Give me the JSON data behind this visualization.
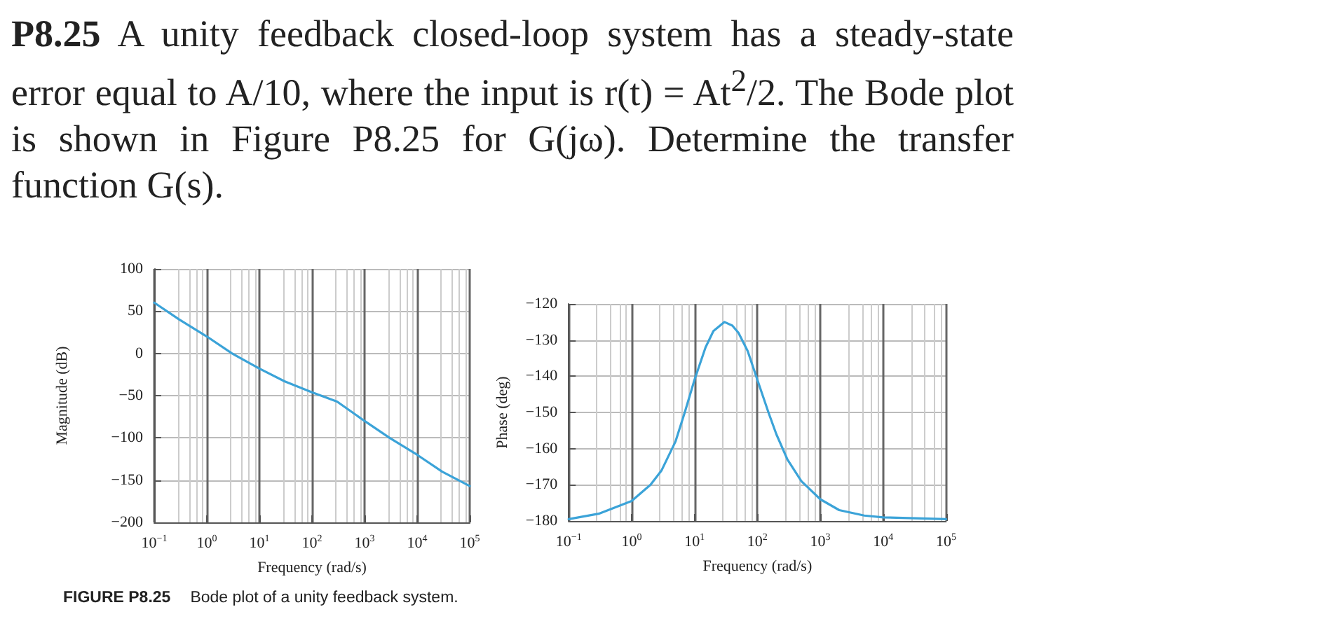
{
  "chart_data": [
    {
      "type": "line",
      "xlabel": "Frequency (rad/s)",
      "ylabel": "Magnitude (dB)",
      "annotations": [
        "P8.25",
        "A unity feedback closed-loop system has a steady-state error equal to A/10, where the input is r(t) = At$^{2}$/2. The Bode plot is shown in Figure P8.25 for G(jω). Determine the transfer function G(s).",
        "FIGURE P8.25",
        "Bode plot of a unity feedback system."
      ],
      "x": [
        0.1,
        0.3,
        1,
        3,
        10,
        30,
        100,
        300,
        1000,
        3000,
        10000,
        30000,
        100000
      ],
      "series": [
        {
          "color": "#3ba3d8",
          "values": [
            60,
            40,
            20,
            0,
            -18,
            -33,
            -46,
            -57,
            -80,
            -100,
            -120,
            -140,
            -157
          ]
        }
      ],
      "xlim": [
        0.1,
        100000
      ],
      "xticks": [
        {
          "value": 0.1,
          "label": "10$^{−1}$"
        },
        {
          "value": 1,
          "label": "10$^{0}$"
        },
        {
          "value": 10,
          "label": "10$^{1}$"
        },
        {
          "value": 100,
          "label": "10$^{2}$"
        },
        {
          "value": 1000,
          "label": "10$^{3}$"
        },
        {
          "value": 10000,
          "label": "10$^{4}$"
        },
        {
          "value": 100000,
          "label": "10$^{5}$"
        }
      ],
      "ylim": [
        -200,
        100
      ],
      "yticks": [
        {
          "value": -200,
          "label": "−200"
        },
        {
          "value": -150,
          "label": "−150"
        },
        {
          "value": -100,
          "label": "−100"
        },
        {
          "value": -50,
          "label": "−50"
        },
        0,
        50,
        100
      ],
      "log": "x",
      "grid": true,
      "marker": "none",
      "line_style": "solid"
    },
    {
      "type": "line",
      "xlabel": "Frequency (rad/s)",
      "ylabel": "Phase (deg)",
      "x": [
        0.1,
        0.3,
        1,
        2,
        3,
        5,
        7,
        10,
        15,
        20,
        30,
        40,
        50,
        70,
        100,
        150,
        200,
        300,
        500,
        1000,
        2000,
        5000,
        10000,
        100000
      ],
      "series": [
        {
          "color": "#3ba3d8",
          "values": [
            -179.5,
            -178,
            -174.5,
            -170,
            -166,
            -158,
            -150,
            -141,
            -132,
            -127.5,
            -125,
            -126,
            -128,
            -133,
            -141,
            -150,
            -156,
            -163,
            -169,
            -174,
            -177,
            -178.5,
            -179,
            -179.5
          ]
        }
      ],
      "xlim": [
        0.1,
        100000
      ],
      "xticks": [
        {
          "value": 0.1,
          "label": "10$^{−1}$"
        },
        {
          "value": 1,
          "label": "10$^{0}$"
        },
        {
          "value": 10,
          "label": "10$^{1}$"
        },
        {
          "value": 100,
          "label": "10$^{2}$"
        },
        {
          "value": 1000,
          "label": "10$^{3}$"
        },
        {
          "value": 10000,
          "label": "10$^{4}$"
        },
        {
          "value": 100000,
          "label": "10$^{5}$"
        }
      ],
      "ylim": [
        -180,
        -120
      ],
      "yticks": [
        {
          "value": -180,
          "label": "−180"
        },
        {
          "value": -170,
          "label": "−170"
        },
        {
          "value": -160,
          "label": "−160"
        },
        {
          "value": -150,
          "label": "−150"
        },
        {
          "value": -140,
          "label": "−140"
        },
        {
          "value": -130,
          "label": "−130"
        },
        {
          "value": -120,
          "label": "−120"
        }
      ],
      "log": "x",
      "grid": true,
      "marker": "none",
      "line_style": "solid"
    }
  ]
}
